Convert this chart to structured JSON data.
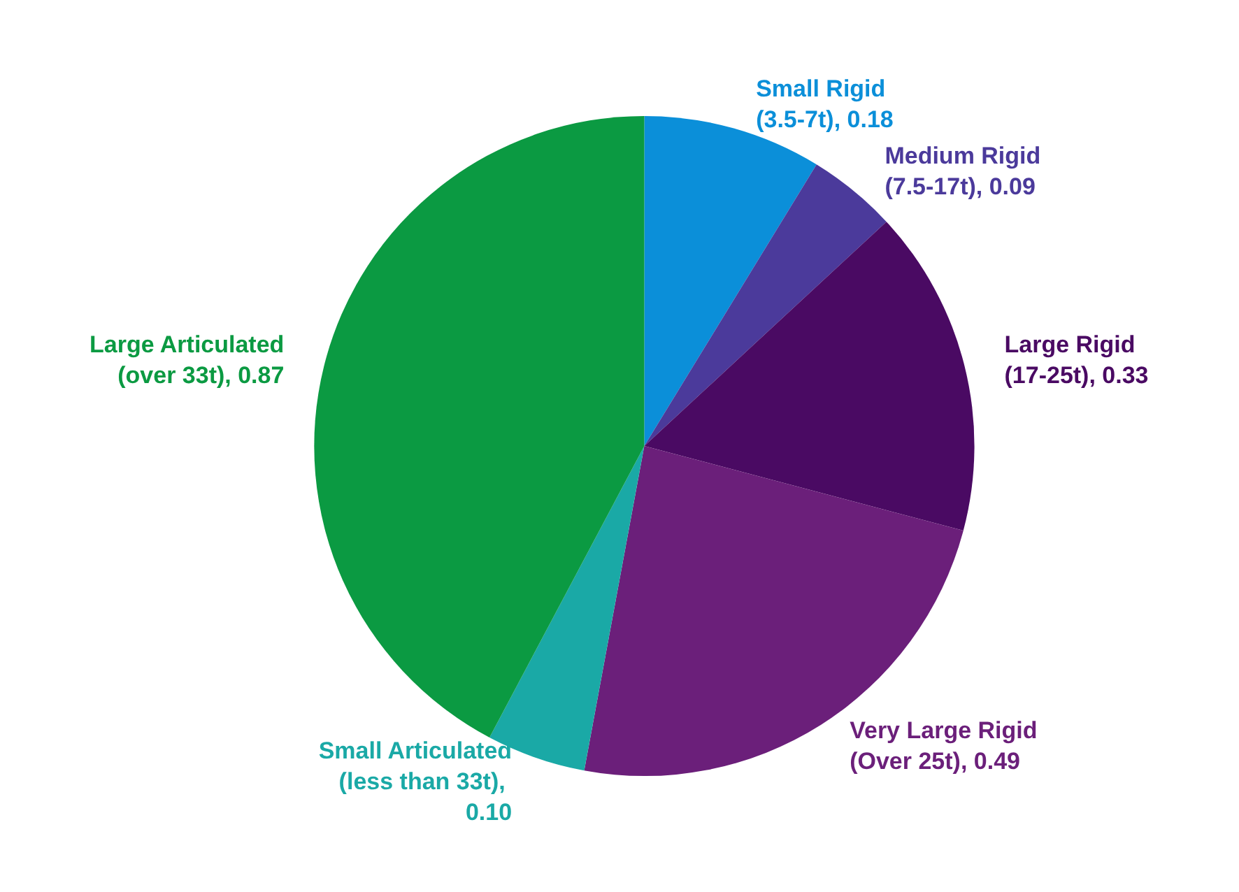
{
  "chart_data": {
    "type": "pie",
    "categories": [
      "Small Rigid (3.5-7t), 0.18",
      "Medium Rigid (7.5-17t), 0.09",
      "Large Rigid (17-25t), 0.33",
      "Very Large Rigid (Over 25t), 0.49",
      "Small Articulated (less than 33t), 0.10",
      "Large Articulated (over 33t), 0.87"
    ],
    "values": [
      0.18,
      0.09,
      0.33,
      0.49,
      0.1,
      0.87
    ],
    "colors": [
      "#0b8fd9",
      "#4b3a9b",
      "#4a0a63",
      "#6b1f7a",
      "#1aa9a6",
      "#0b9a42"
    ],
    "legend": false
  }
}
